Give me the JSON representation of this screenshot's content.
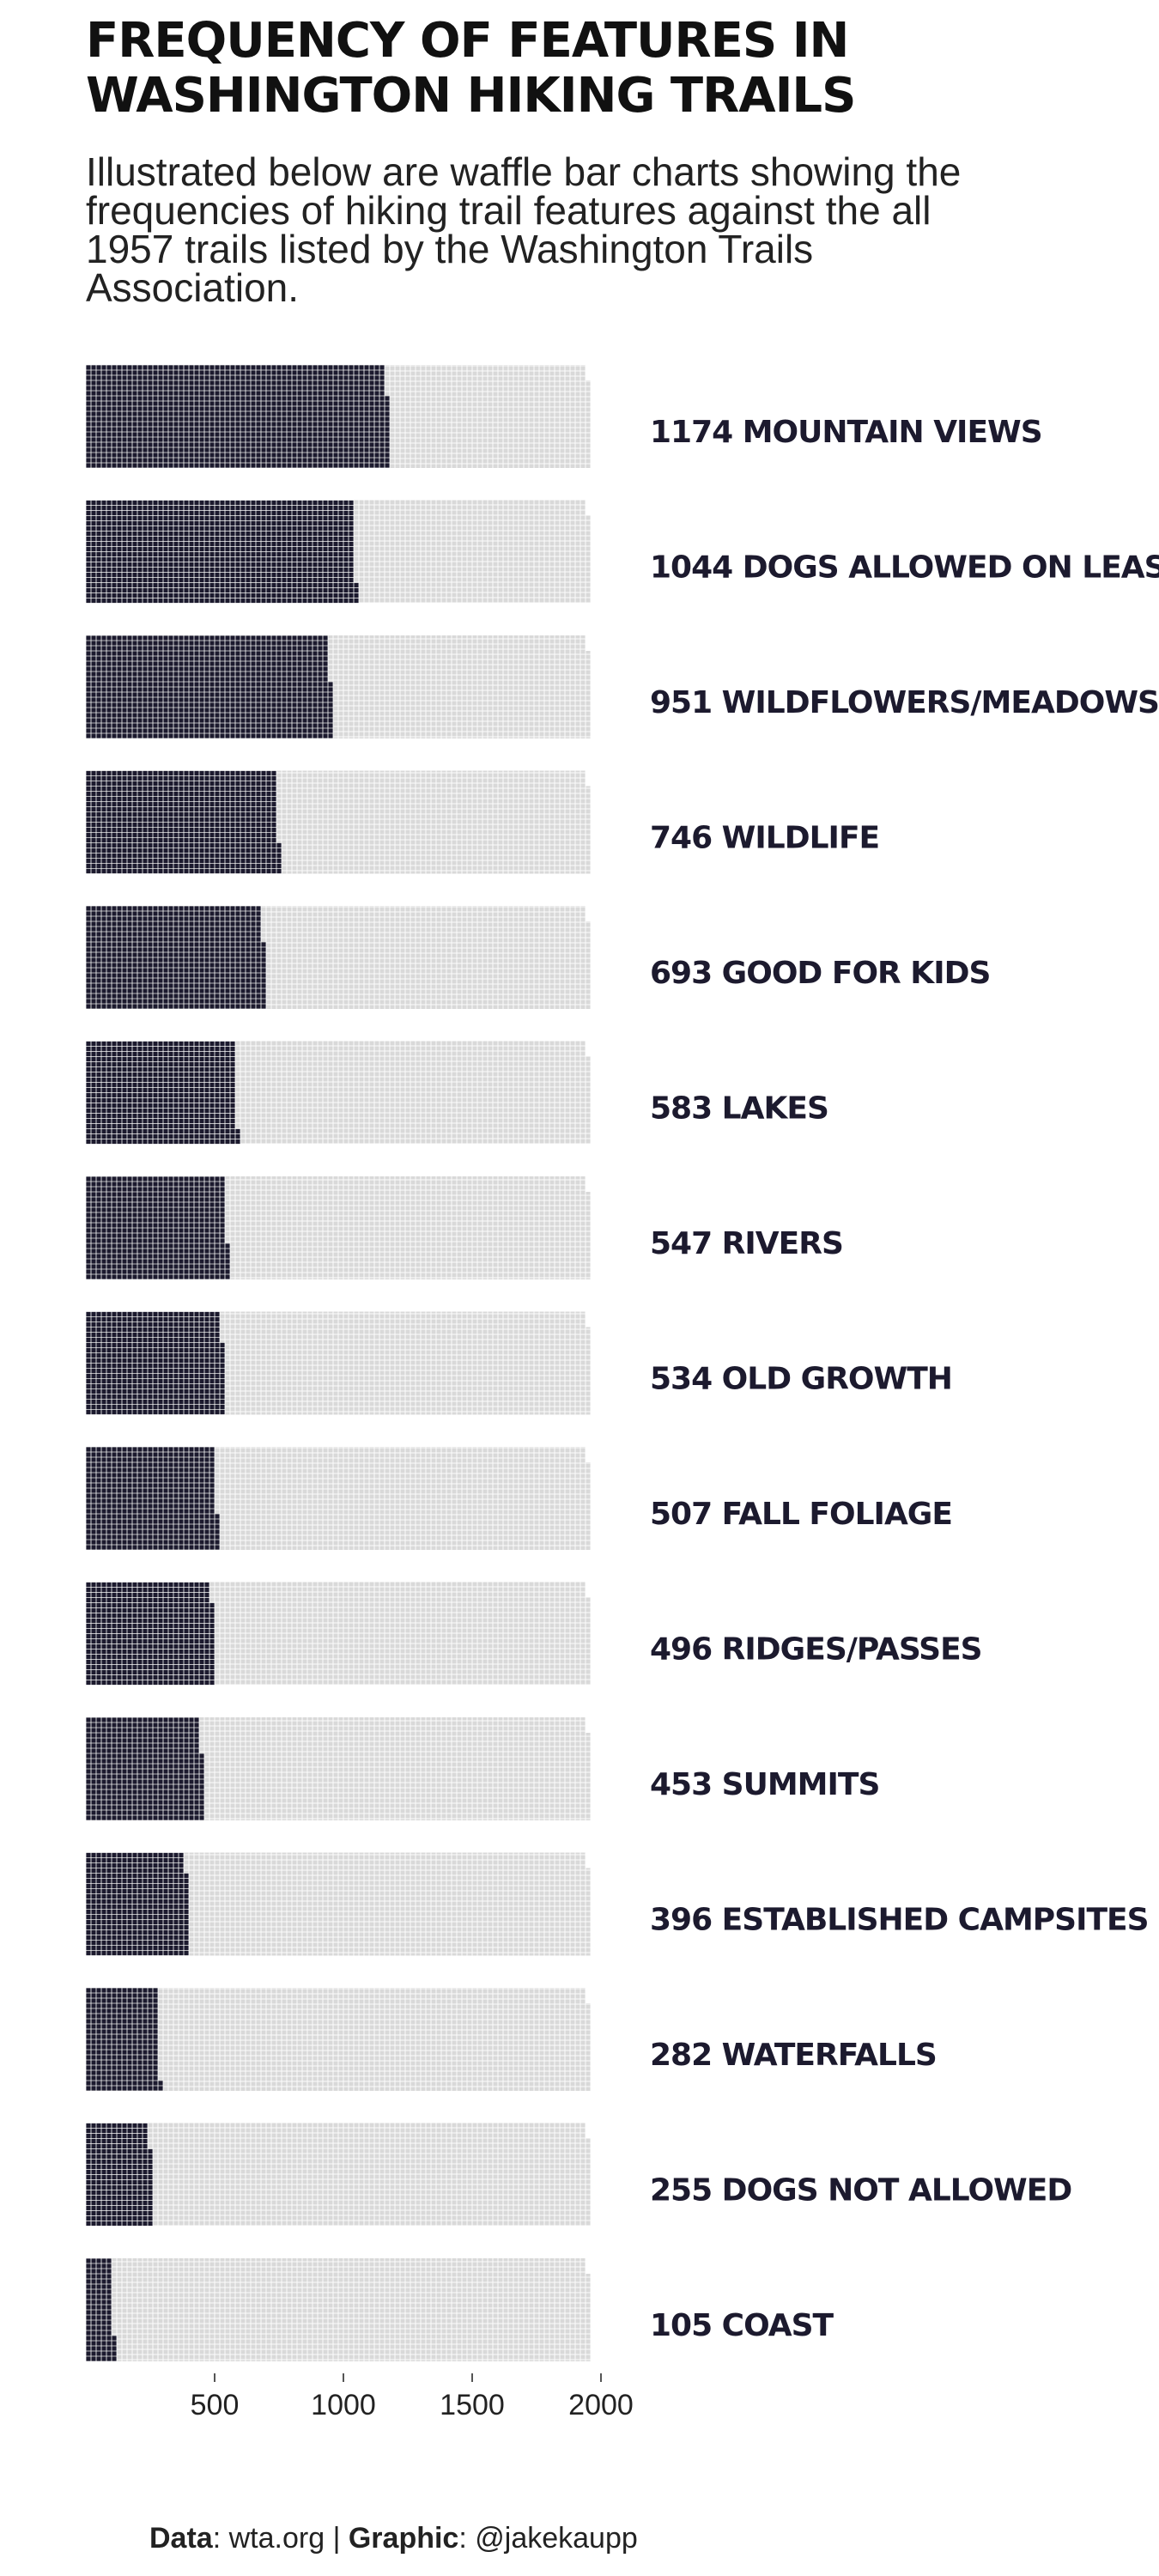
{
  "title": "FREQUENCY OF FEATURES IN WASHINGTON HIKING TRAILS",
  "subtitle": "Illustrated below are waffle bar charts showing the frequencies of hiking trail features against the all 1957 trails listed by the Washington Trails Association.",
  "caption": {
    "data_label": "Data",
    "data_value": "wta.org",
    "separator": "|",
    "graphic_label": "Graphic",
    "graphic_value": "@jakekaupp"
  },
  "colors": {
    "filled": "#1c1a2e",
    "empty": "#d9d9d9",
    "cell_border": "#ffffff",
    "label": "#1c1a2e"
  },
  "chart_data": {
    "type": "bar",
    "subtype": "waffle",
    "total": 1957,
    "categories": [
      "MOUNTAIN VIEWS",
      "DOGS ALLOWED ON LEASH",
      "WILDFLOWERS/MEADOWS",
      "WILDLIFE",
      "GOOD FOR KIDS",
      "LAKES",
      "RIVERS",
      "OLD GROWTH",
      "FALL FOLIAGE",
      "RIDGES/PASSES",
      "SUMMITS",
      "ESTABLISHED CAMPSITES",
      "WATERFALLS",
      "DOGS NOT ALLOWED",
      "COAST"
    ],
    "values": [
      1174,
      1044,
      951,
      746,
      693,
      583,
      547,
      534,
      507,
      496,
      453,
      396,
      282,
      255,
      105
    ],
    "x_ticks": [
      500,
      1000,
      1500,
      2000
    ],
    "xlim": [
      0,
      2000
    ],
    "grid": false,
    "legend": "none"
  }
}
